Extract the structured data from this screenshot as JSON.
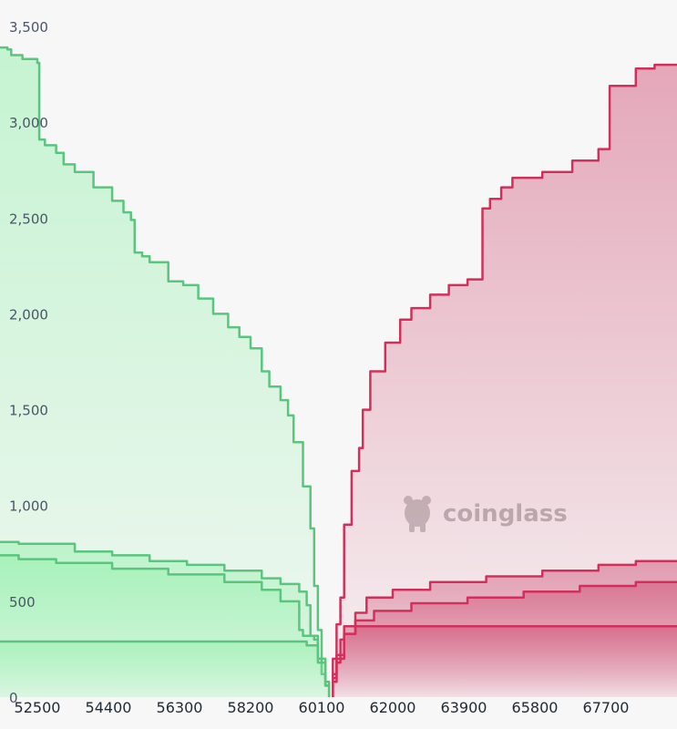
{
  "watermark": "coinglass",
  "colors": {
    "background": "#f7f7f7",
    "long_line": "#5bc47f",
    "long_fill_top": "#8ff0a8",
    "short_line": "#d2305c",
    "short_fill_top": "#c8345f",
    "watermark": "#b9b9b9"
  },
  "chart_data": {
    "type": "area",
    "title": "",
    "xlabel": "",
    "ylabel": "",
    "xlim": [
      51500,
      69600
    ],
    "ylim": [
      0,
      3500
    ],
    "y_ticks": [
      0,
      500,
      1000,
      1500,
      2000,
      2500,
      3000,
      3500
    ],
    "y_tick_labels": [
      "0",
      "500",
      "1,000",
      "1,500",
      "2,000",
      "2,500",
      "3,000",
      "3,500"
    ],
    "x_ticks": [
      52500,
      54400,
      56300,
      58200,
      60100,
      62000,
      63900,
      65800,
      67700
    ],
    "x_tick_labels": [
      "52500",
      "54400",
      "56300",
      "58200",
      "60100",
      "62000",
      "63900",
      "65800",
      "67700"
    ],
    "grid": false,
    "legend": "none",
    "series": [
      {
        "side": "long",
        "x": [
          51500,
          51700,
          51800,
          52100,
          52500,
          52550,
          52700,
          53000,
          53200,
          53500,
          54000,
          54500,
          54800,
          55000,
          55100,
          55300,
          55500,
          56000,
          56400,
          56800,
          57200,
          57600,
          57900,
          58200,
          58500,
          58700,
          59000,
          59200,
          59350,
          59600,
          59800,
          59900,
          60000,
          60100,
          60200,
          60300
        ],
        "values": [
          3390,
          3380,
          3350,
          3330,
          3310,
          2910,
          2880,
          2840,
          2780,
          2740,
          2660,
          2590,
          2530,
          2490,
          2320,
          2300,
          2270,
          2170,
          2150,
          2080,
          2000,
          1930,
          1880,
          1820,
          1700,
          1620,
          1550,
          1470,
          1330,
          1100,
          880,
          580,
          350,
          200,
          80,
          0
        ]
      },
      {
        "side": "long",
        "x": [
          51500,
          52000,
          53500,
          54500,
          55500,
          56500,
          57500,
          58500,
          59000,
          59500,
          59700,
          59800,
          60000,
          60100,
          60200,
          60300
        ],
        "values": [
          810,
          800,
          760,
          740,
          710,
          690,
          660,
          620,
          590,
          550,
          480,
          320,
          200,
          120,
          60,
          0
        ]
      },
      {
        "side": "long",
        "x": [
          51500,
          52000,
          53000,
          54500,
          56000,
          57500,
          58500,
          59000,
          59500,
          59600,
          59900,
          60000,
          60100,
          60200,
          60300
        ],
        "values": [
          740,
          720,
          700,
          670,
          640,
          600,
          560,
          500,
          350,
          320,
          300,
          200,
          120,
          60,
          0
        ]
      },
      {
        "side": "long",
        "x": [
          51500,
          59600,
          59700,
          60000,
          60200,
          60300
        ],
        "values": [
          290,
          290,
          270,
          180,
          60,
          0
        ]
      },
      {
        "side": "short",
        "x": [
          60400,
          60500,
          60600,
          60700,
          60900,
          61100,
          61200,
          61400,
          61800,
          62200,
          62500,
          63000,
          63500,
          64000,
          64400,
          64600,
          64900,
          65200,
          66000,
          66800,
          67500,
          67800,
          68500,
          69000,
          69600
        ],
        "values": [
          0,
          200,
          380,
          520,
          900,
          1180,
          1300,
          1500,
          1700,
          1850,
          1970,
          2030,
          2100,
          2150,
          2180,
          2550,
          2600,
          2660,
          2710,
          2740,
          2800,
          2860,
          3190,
          3280,
          3300
        ]
      },
      {
        "side": "short",
        "x": [
          60400,
          60500,
          60700,
          61000,
          61300,
          62000,
          63000,
          64500,
          66000,
          67500,
          68500,
          69600
        ],
        "values": [
          0,
          120,
          220,
          330,
          440,
          520,
          560,
          600,
          630,
          660,
          690,
          710
        ]
      },
      {
        "side": "short",
        "x": [
          60400,
          60500,
          60700,
          61000,
          61500,
          62500,
          64000,
          65500,
          67000,
          68500,
          69600
        ],
        "values": [
          0,
          100,
          200,
          330,
          400,
          450,
          490,
          520,
          550,
          580,
          600
        ]
      },
      {
        "side": "short",
        "x": [
          60400,
          60500,
          60600,
          60700,
          61000,
          69600
        ],
        "values": [
          0,
          80,
          180,
          300,
          370,
          370
        ]
      }
    ]
  }
}
